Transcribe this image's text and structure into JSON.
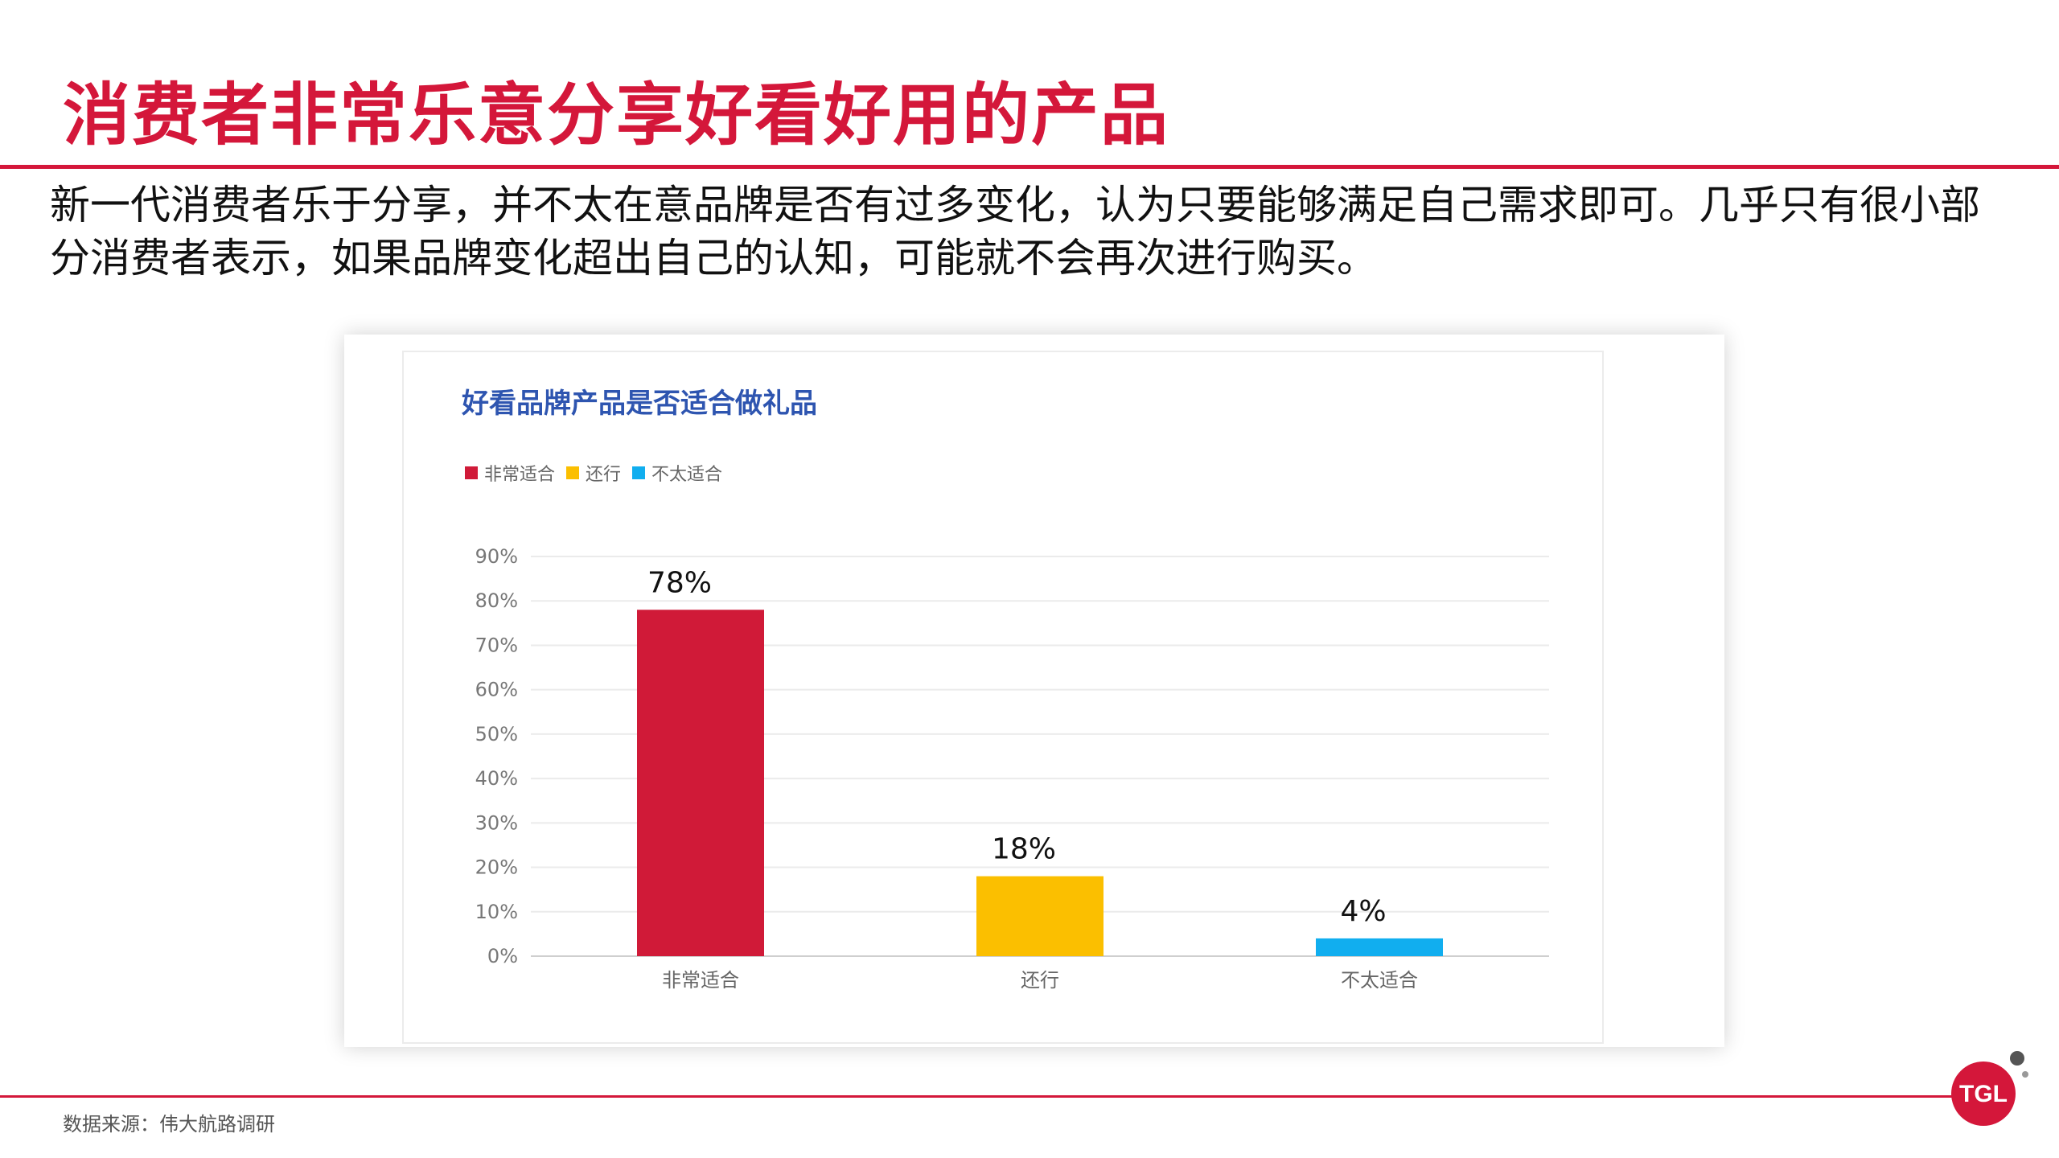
{
  "slide": {
    "title": "消费者非常乐意分享好看好用的产品",
    "intro": "新一代消费者乐于分享，并不太在意品牌是否有过多变化，认为只要能够满足自己需求即可。几乎只有很小部分消费者表示，如果品牌变化超出自己的认知，可能就不会再次进行购买。",
    "source": "数据来源：伟大航路调研",
    "logo_text": "TGL",
    "accent_color": "#d4173a"
  },
  "chart_data": {
    "type": "bar",
    "title": "好看品牌产品是否适合做礼品",
    "categories": [
      "非常适合",
      "还行",
      "不太适合"
    ],
    "values": [
      78,
      18,
      4
    ],
    "value_labels": [
      "78%",
      "18%",
      "4%"
    ],
    "colors": [
      "#d01a38",
      "#fbbf00",
      "#11aeef"
    ],
    "legend": [
      "非常适合",
      "还行",
      "不太适合"
    ],
    "legend_position": "top-left",
    "ylim": [
      0,
      90
    ],
    "y_ticks": [
      "0%",
      "10%",
      "20%",
      "30%",
      "40%",
      "50%",
      "60%",
      "70%",
      "80%",
      "90%"
    ],
    "grid": true,
    "xlabel": "",
    "ylabel": ""
  }
}
